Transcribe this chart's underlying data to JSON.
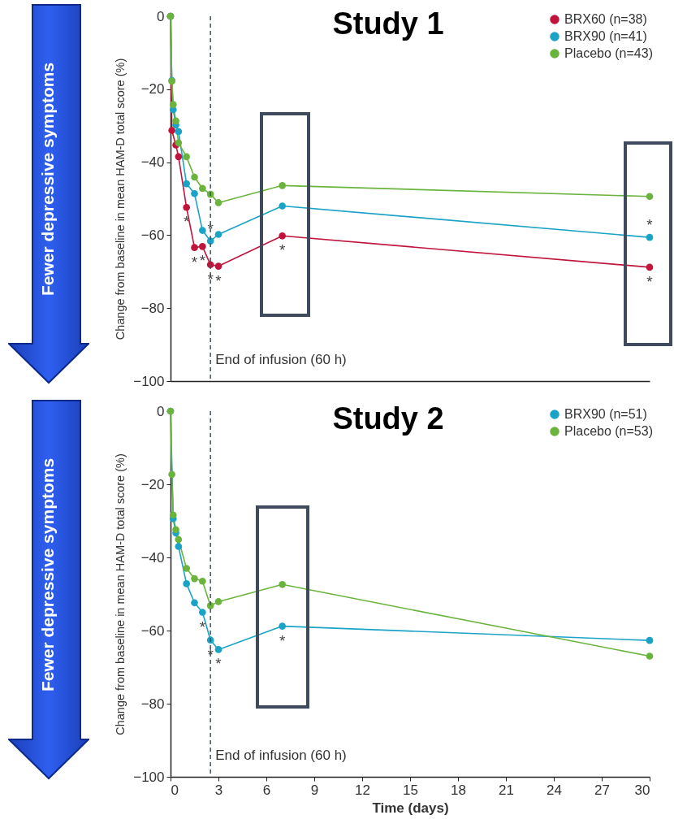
{
  "chart_data": [
    {
      "type": "line",
      "title": "Study 1",
      "ylabel": "Change from baseline in mean HAM-D total score (%)",
      "xlim": [
        0,
        30
      ],
      "ylim": [
        -100,
        0
      ],
      "yticks": [
        -100,
        -80,
        -60,
        -40,
        -20,
        0
      ],
      "tick_labels": "y",
      "grid": false,
      "legend": "top right",
      "marker": "circle",
      "series": [
        {
          "name": "BRX60 (n=38)",
          "color": "#c0143c",
          "x": [
            0,
            0.083,
            0.333,
            0.5,
            1,
            1.5,
            2,
            2.5,
            3,
            7,
            30
          ],
          "values": [
            0,
            -31.3,
            -35.3,
            -38.5,
            -52.4,
            -63.4,
            -63.1,
            -68.1,
            -68.5,
            -60.2,
            -68.8
          ]
        },
        {
          "name": "BRX90 (n=41)",
          "color": "#1ba3c6",
          "x": [
            0,
            0.083,
            0.167,
            0.333,
            0.5,
            1,
            1.5,
            2,
            2.5,
            3,
            7,
            30
          ],
          "values": [
            0,
            -17.6,
            -25.6,
            -29.8,
            -31.6,
            -45.9,
            -48.6,
            -58.7,
            -61.6,
            -59.8,
            -52,
            -60.6
          ]
        },
        {
          "name": "Placebo (n=43)",
          "color": "#6ab43e",
          "x": [
            0,
            0.083,
            0.167,
            0.333,
            0.5,
            1,
            1.5,
            2,
            2.5,
            3,
            7,
            30
          ],
          "values": [
            0,
            -17.8,
            -24.2,
            -28.7,
            -34.7,
            -38.5,
            -44.1,
            -47.2,
            -48.8,
            -51.1,
            -46.4,
            -49.4
          ]
        }
      ],
      "ref_lines": [
        {
          "axis": "x",
          "value": 2.5,
          "label": "End of infusion (60 h)",
          "line_style": "dashed",
          "color": "#3f5560"
        }
      ],
      "annotations": [
        "Fewer depressive symptoms",
        {
          "text": "*",
          "x": 1,
          "y": -52.4
        },
        {
          "text": "*",
          "x": 1.5,
          "y": -63.4
        },
        {
          "text": "*",
          "x": 2,
          "y": -63.1
        },
        {
          "text": "*",
          "x": 2.5,
          "y": -61.6
        },
        {
          "text": "*",
          "x": 2.5,
          "y": -68.1
        },
        {
          "text": "*",
          "x": 3,
          "y": -68.5
        },
        {
          "text": "*",
          "x": 7,
          "y": -60.2
        },
        {
          "text": "*",
          "x": 30,
          "y": -60.6
        },
        {
          "text": "*",
          "x": 30,
          "y": -68.8
        }
      ]
    },
    {
      "type": "line",
      "title": "Study 2",
      "ylabel": "Change from baseline in mean HAM-D total score (%)",
      "xlabel": "Time (days)",
      "xlim": [
        0,
        30
      ],
      "ylim": [
        -100,
        0
      ],
      "xticks": [
        0,
        3,
        6,
        9,
        12,
        15,
        18,
        21,
        24,
        27,
        30
      ],
      "yticks": [
        -100,
        -80,
        -60,
        -40,
        -20,
        0
      ],
      "grid": false,
      "legend": "top right",
      "marker": "circle",
      "series": [
        {
          "name": "BRX90 (n=51)",
          "color": "#1ba3c6",
          "x": [
            0,
            0.167,
            0.333,
            0.5,
            1,
            1.5,
            2,
            2.5,
            3,
            7,
            30
          ],
          "values": [
            0,
            -29.4,
            -33.3,
            -37,
            -47.2,
            -52.4,
            -55,
            -62.6,
            -65.2,
            -58.8,
            -62.7
          ]
        },
        {
          "name": "Placebo (n=53)",
          "color": "#6ab43e",
          "x": [
            0,
            0.083,
            0.167,
            0.333,
            0.5,
            1,
            1.5,
            2,
            2.5,
            3,
            7,
            30
          ],
          "values": [
            0,
            -17.3,
            -28.4,
            -32.4,
            -35.1,
            -43,
            -45.8,
            -46.5,
            -53.2,
            -52.1,
            -47.4,
            -67
          ]
        }
      ],
      "ref_lines": [
        {
          "axis": "x",
          "value": 2.5,
          "label": "End of infusion (60 h)",
          "line_style": "dashed",
          "color": "#3f5560"
        }
      ],
      "annotations": [
        "Fewer depressive symptoms",
        {
          "text": "*",
          "x": 2,
          "y": -55
        },
        {
          "text": "*",
          "x": 2.5,
          "y": -62.6
        },
        {
          "text": "*",
          "x": 3,
          "y": -65.2
        },
        {
          "text": "*",
          "x": 7,
          "y": -58.8
        }
      ]
    }
  ]
}
